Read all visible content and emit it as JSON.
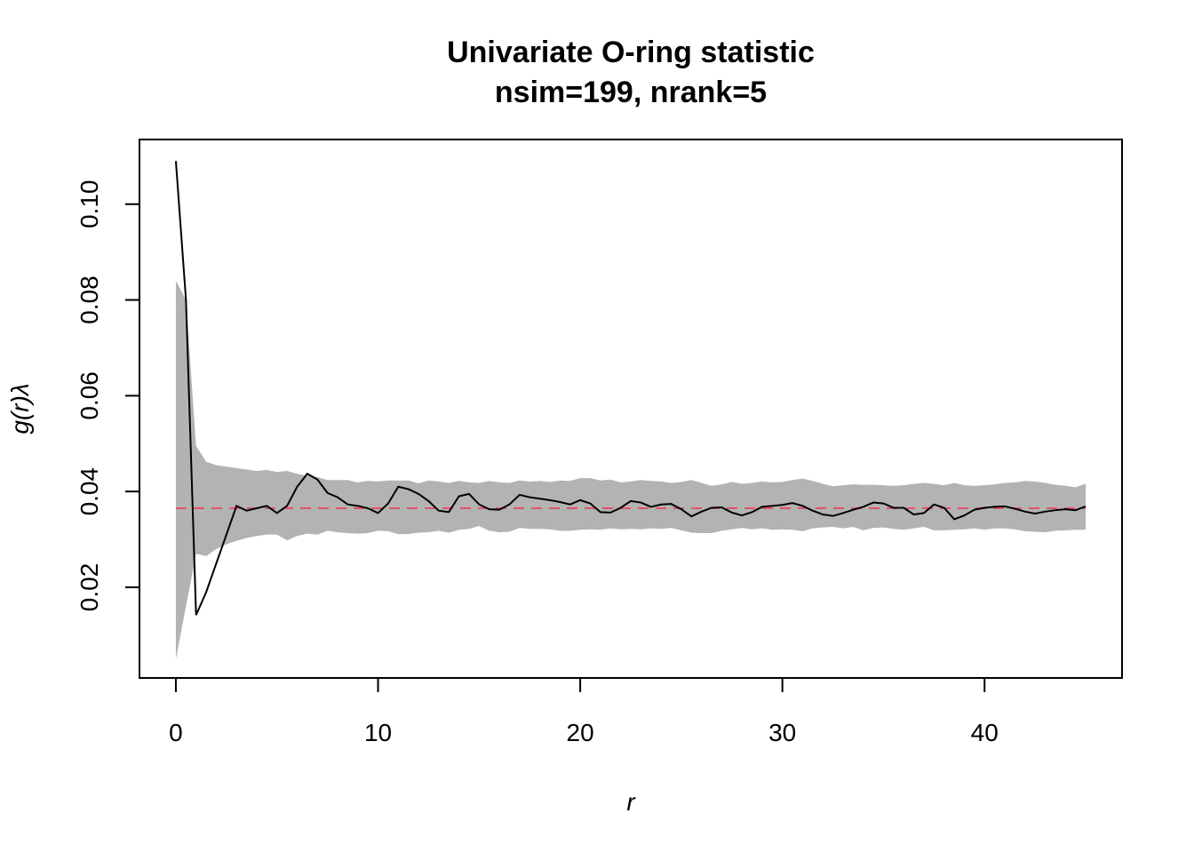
{
  "chart_data": {
    "type": "envelope",
    "title": "Univariate O-ring statistic",
    "subtitle": "nsim=199, nrank=5",
    "xlabel": "r",
    "ylabel": "g(r)λ",
    "x": [
      0,
      0.5,
      1,
      1.5,
      2,
      2.5,
      3,
      3.5,
      4,
      4.5,
      5,
      5.5,
      6,
      6.5,
      7,
      7.5,
      8,
      8.5,
      9,
      9.5,
      10,
      10.5,
      11,
      11.5,
      12,
      12.5,
      13,
      13.5,
      14,
      14.5,
      15,
      15.5,
      16,
      16.5,
      17,
      17.5,
      18,
      18.5,
      19,
      19.5,
      20,
      20.5,
      21,
      21.5,
      22,
      22.5,
      23,
      23.5,
      24,
      24.5,
      25,
      25.5,
      26,
      26.5,
      27,
      27.5,
      28,
      28.5,
      29,
      29.5,
      30,
      30.5,
      31,
      31.5,
      32,
      32.5,
      33,
      33.5,
      34,
      34.5,
      35,
      35.5,
      36,
      36.5,
      37,
      37.5,
      38,
      38.5,
      39,
      39.5,
      40,
      40.5,
      41,
      41.5,
      42,
      42.5,
      43,
      43.5,
      44,
      44.5,
      45
    ],
    "observed": [
      0.109,
      0.08,
      0.0142,
      0.019,
      0.025,
      0.031,
      0.037,
      0.036,
      0.0365,
      0.037,
      0.0355,
      0.037,
      0.041,
      0.0437,
      0.0425,
      0.0397,
      0.0388,
      0.0373,
      0.037,
      0.0365,
      0.0355,
      0.0375,
      0.041,
      0.0405,
      0.0395,
      0.038,
      0.036,
      0.0357,
      0.039,
      0.0395,
      0.0373,
      0.0363,
      0.0362,
      0.0373,
      0.0393,
      0.0388,
      0.0385,
      0.0382,
      0.0378,
      0.0373,
      0.0382,
      0.0375,
      0.0357,
      0.0356,
      0.0366,
      0.038,
      0.0377,
      0.0368,
      0.0373,
      0.0374,
      0.0363,
      0.0348,
      0.0358,
      0.0366,
      0.0367,
      0.0356,
      0.035,
      0.0357,
      0.0368,
      0.037,
      0.0372,
      0.0376,
      0.037,
      0.036,
      0.0352,
      0.0349,
      0.0355,
      0.0362,
      0.0368,
      0.0377,
      0.0375,
      0.0366,
      0.0366,
      0.0352,
      0.0355,
      0.0373,
      0.0366,
      0.0342,
      0.035,
      0.0362,
      0.0366,
      0.0368,
      0.0369,
      0.0364,
      0.0358,
      0.0354,
      0.0358,
      0.0361,
      0.0363,
      0.0361,
      0.0369
    ],
    "envelope_hi": [
      0.084,
      0.08,
      0.0495,
      0.0462,
      0.0455,
      0.0452,
      0.0449,
      0.0446,
      0.0443,
      0.0445,
      0.0441,
      0.0443,
      0.0437,
      0.0433,
      0.043,
      0.0424,
      0.0424,
      0.0424,
      0.0419,
      0.0422,
      0.0421,
      0.0423,
      0.0423,
      0.0423,
      0.0417,
      0.0423,
      0.0421,
      0.0418,
      0.0422,
      0.0419,
      0.0418,
      0.0422,
      0.0419,
      0.0418,
      0.0423,
      0.0421,
      0.0422,
      0.042,
      0.0423,
      0.0422,
      0.0428,
      0.0428,
      0.0423,
      0.0425,
      0.0419,
      0.0421,
      0.0424,
      0.0422,
      0.0421,
      0.0418,
      0.042,
      0.0424,
      0.0418,
      0.0412,
      0.0415,
      0.042,
      0.0416,
      0.0418,
      0.0421,
      0.0419,
      0.042,
      0.0424,
      0.0427,
      0.0422,
      0.0416,
      0.0411,
      0.0413,
      0.0415,
      0.0414,
      0.0414,
      0.0413,
      0.0412,
      0.0413,
      0.0416,
      0.0418,
      0.0416,
      0.0413,
      0.0418,
      0.0413,
      0.0412,
      0.0413,
      0.0415,
      0.0418,
      0.0419,
      0.0422,
      0.0421,
      0.0418,
      0.0414,
      0.0412,
      0.0409,
      0.0416
    ],
    "envelope_lo": [
      0.005,
      0.016,
      0.027,
      0.0265,
      0.028,
      0.029,
      0.0297,
      0.0303,
      0.0307,
      0.031,
      0.031,
      0.0298,
      0.0307,
      0.0312,
      0.031,
      0.0318,
      0.0315,
      0.0313,
      0.0312,
      0.0313,
      0.0318,
      0.0317,
      0.0311,
      0.0311,
      0.0314,
      0.0315,
      0.0318,
      0.0314,
      0.032,
      0.0322,
      0.0328,
      0.0318,
      0.0315,
      0.0316,
      0.0324,
      0.0322,
      0.0322,
      0.0321,
      0.0318,
      0.0318,
      0.032,
      0.0321,
      0.032,
      0.0323,
      0.0321,
      0.0322,
      0.0321,
      0.0323,
      0.0322,
      0.0324,
      0.0319,
      0.0314,
      0.0313,
      0.0313,
      0.0318,
      0.0321,
      0.0324,
      0.0321,
      0.0323,
      0.032,
      0.0321,
      0.032,
      0.0317,
      0.0323,
      0.0325,
      0.0326,
      0.0323,
      0.0326,
      0.0319,
      0.0324,
      0.0325,
      0.0322,
      0.032,
      0.0323,
      0.0326,
      0.0319,
      0.0319,
      0.032,
      0.0321,
      0.0323,
      0.032,
      0.0323,
      0.0323,
      0.0321,
      0.0317,
      0.0316,
      0.0315,
      0.0318,
      0.0319,
      0.032,
      0.032
    ],
    "theoretical": 0.0365,
    "envelope_color": "#b3b3b3",
    "observed_color": "#000000",
    "theoretical_color": "#df536b",
    "xlim": [
      -1.8,
      46.8
    ],
    "ylim": [
      0.00107,
      0.1135
    ],
    "xticks": [
      0,
      10,
      20,
      30,
      40
    ],
    "yticks": [
      0.02,
      0.04,
      0.06,
      0.08,
      {
        "value": 0.1,
        "label": "0.10"
      }
    ]
  }
}
